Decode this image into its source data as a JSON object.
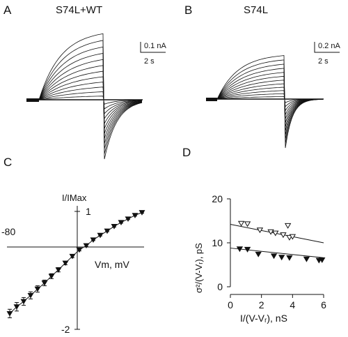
{
  "panels": {
    "A": {
      "letter": "A",
      "title": "S74L+WT",
      "scale_current": "0.1 nA",
      "scale_time": "2 s"
    },
    "B": {
      "letter": "B",
      "title": "S74L",
      "scale_current": "0.2 nA",
      "scale_time": "2 s"
    },
    "C": {
      "letter": "C"
    },
    "D": {
      "letter": "D"
    }
  },
  "colors": {
    "ink": "#111111",
    "background": "#ffffff"
  },
  "chart_data": [
    {
      "panel": "C",
      "type": "scatter",
      "title": "",
      "ylabel": "I/IMax",
      "xlabel": "Vm,  mV",
      "x_tick_labels": [
        "-80"
      ],
      "y_tick_labels": [
        "1",
        "-2"
      ],
      "xlim": [
        -80,
        15
      ],
      "ylim": [
        -2,
        1
      ],
      "series": [
        {
          "marker": "filled-inverted-triangle",
          "error_bars": true,
          "fit_line": true,
          "points": [
            {
              "x": -80,
              "y": -1.87,
              "err": 0.12
            },
            {
              "x": -75,
              "y": -1.68,
              "err": 0.12
            },
            {
              "x": -70,
              "y": -1.53,
              "err": 0.11
            },
            {
              "x": -65,
              "y": -1.36,
              "err": 0.1
            },
            {
              "x": -60,
              "y": -1.18,
              "err": 0.09
            },
            {
              "x": -55,
              "y": -1.01,
              "err": 0.08
            },
            {
              "x": -50,
              "y": -0.82,
              "err": 0.07
            },
            {
              "x": -45,
              "y": -0.64,
              "err": 0.06
            },
            {
              "x": -40,
              "y": -0.45,
              "err": 0.05
            },
            {
              "x": -35,
              "y": -0.26,
              "err": 0.04
            },
            {
              "x": -30,
              "y": -0.08,
              "err": 0.03
            },
            {
              "x": -25,
              "y": 0.04,
              "err": 0.03
            },
            {
              "x": -20,
              "y": 0.2,
              "err": 0.02
            },
            {
              "x": -15,
              "y": 0.33,
              "err": 0.02
            },
            {
              "x": -10,
              "y": 0.45,
              "err": 0.02
            },
            {
              "x": -5,
              "y": 0.58,
              "err": 0.02
            },
            {
              "x": 0,
              "y": 0.69,
              "err": 0.02
            },
            {
              "x": 5,
              "y": 0.79,
              "err": 0.02
            },
            {
              "x": 10,
              "y": 0.89,
              "err": 0.02
            },
            {
              "x": 15,
              "y": 0.97,
              "err": 0.02
            }
          ]
        }
      ]
    },
    {
      "panel": "D",
      "type": "scatter",
      "title": "",
      "xlabel": "I/(V-Vᵣ),  nS",
      "ylabel": "σ²/(V-Vᵣ),  pS",
      "x_ticks": [
        0,
        2,
        4,
        6
      ],
      "x_tick_labels": [
        "0",
        "2",
        "4",
        "6"
      ],
      "y_ticks": [
        0,
        10,
        20
      ],
      "y_tick_labels": [
        "0",
        "10",
        "20"
      ],
      "xlim": [
        0,
        6
      ],
      "ylim": [
        0,
        20
      ],
      "series": [
        {
          "marker": "open-inverted-triangle",
          "fit": {
            "x": [
              0,
              6
            ],
            "y": [
              14.2,
              10.0
            ]
          },
          "points": [
            {
              "x": 0.7,
              "y": 14.4
            },
            {
              "x": 1.1,
              "y": 14.3
            },
            {
              "x": 1.9,
              "y": 12.9
            },
            {
              "x": 2.6,
              "y": 12.5
            },
            {
              "x": 2.9,
              "y": 12.2
            },
            {
              "x": 3.4,
              "y": 11.8
            },
            {
              "x": 3.7,
              "y": 13.9
            },
            {
              "x": 3.8,
              "y": 11.2
            },
            {
              "x": 4.0,
              "y": 11.4
            }
          ]
        },
        {
          "marker": "filled-inverted-triangle",
          "fit": {
            "x": [
              0,
              6
            ],
            "y": [
              8.8,
              6.6
            ]
          },
          "points": [
            {
              "x": 0.6,
              "y": 8.6
            },
            {
              "x": 1.1,
              "y": 8.5
            },
            {
              "x": 1.8,
              "y": 7.4
            },
            {
              "x": 2.8,
              "y": 7.0
            },
            {
              "x": 3.3,
              "y": 6.7
            },
            {
              "x": 3.8,
              "y": 6.6
            },
            {
              "x": 4.9,
              "y": 6.3
            },
            {
              "x": 5.7,
              "y": 6.0
            },
            {
              "x": 5.9,
              "y": 6.1
            }
          ]
        }
      ]
    }
  ]
}
